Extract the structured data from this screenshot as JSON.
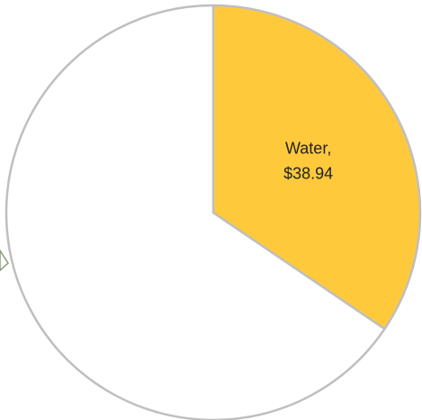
{
  "chart_data": {
    "type": "pie",
    "categories": [
      "Water,",
      null
    ],
    "values": [
      38.94,
      74
    ],
    "value_labels": [
      "$38.94",
      null
    ],
    "colors": [
      "#ffc93c",
      "#ffffff"
    ],
    "start_angle": 0,
    "direction": "clockwise"
  }
}
